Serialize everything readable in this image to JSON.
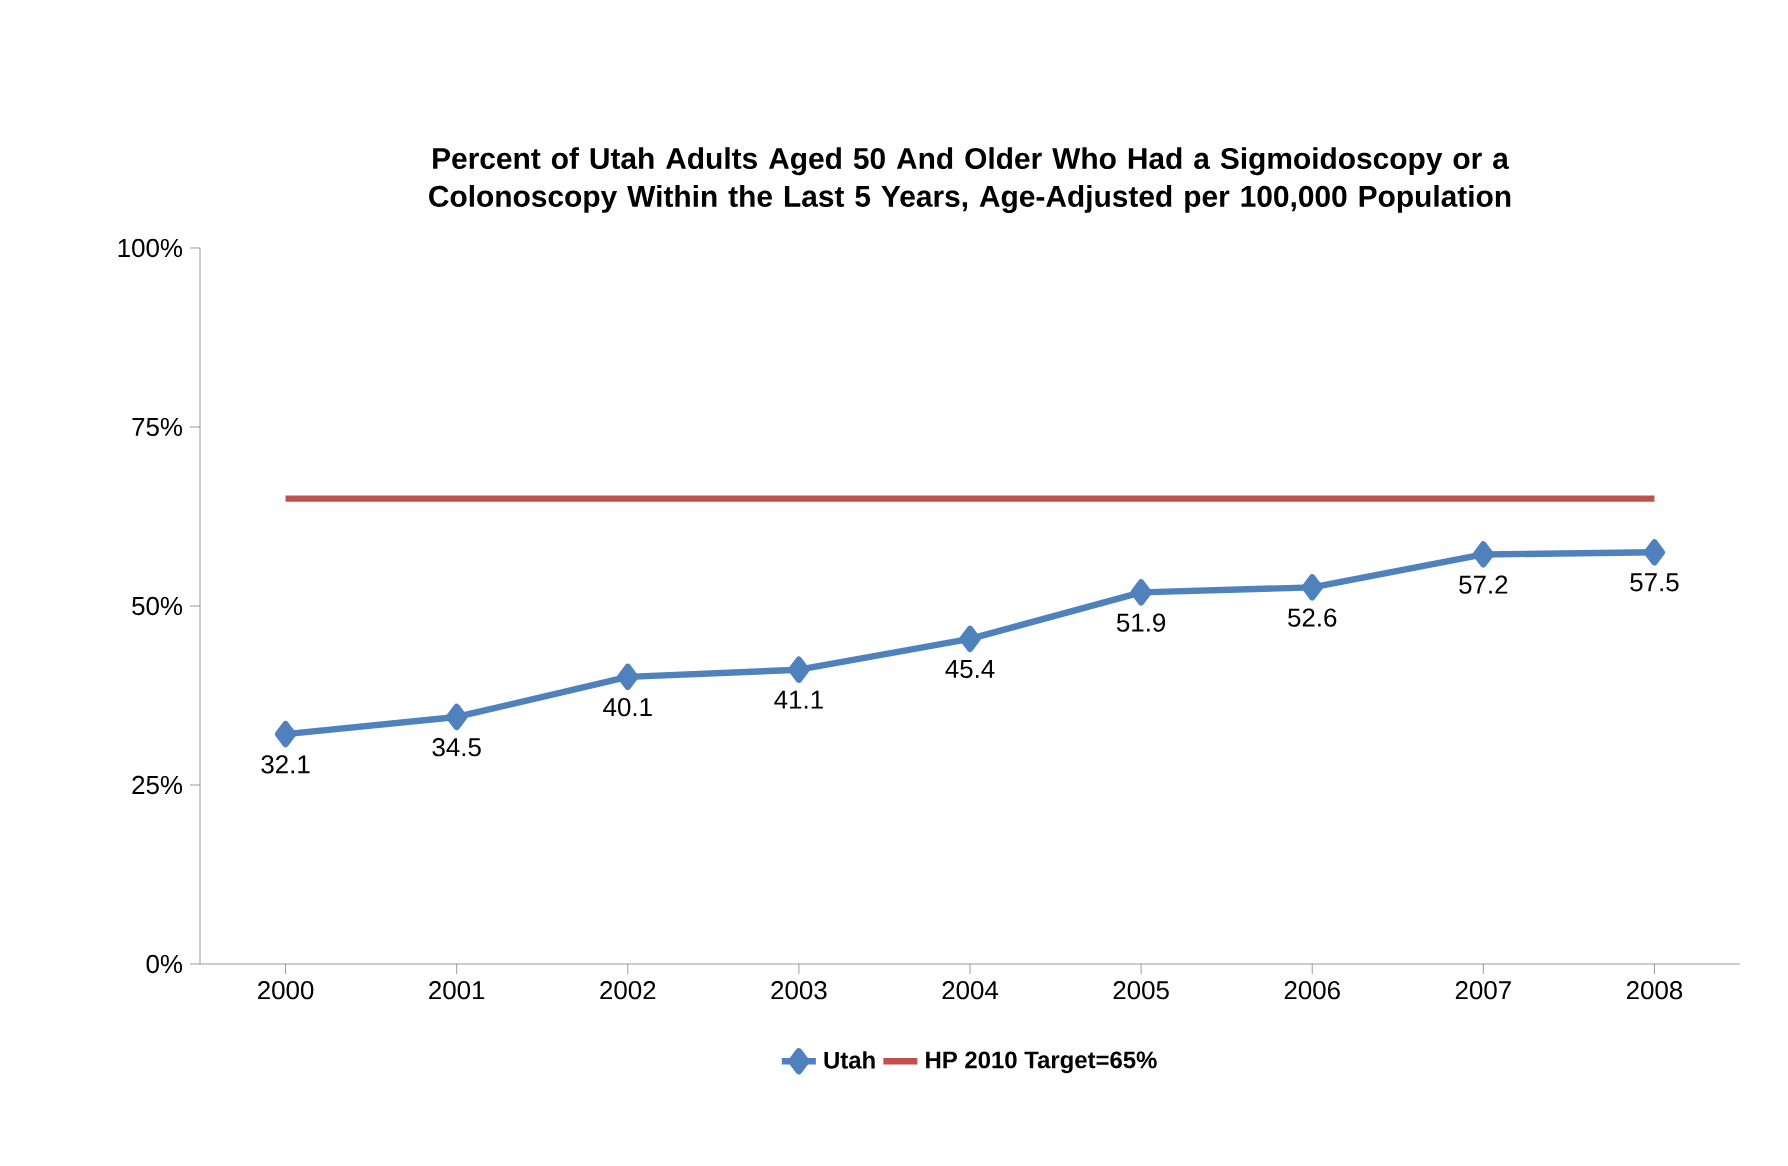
{
  "chart_data": {
    "type": "line",
    "title": "Percent of Utah Adults Aged 50 And Older Who Had a Sigmoidoscopy or a Colonoscopy Within the Last 5 Years, Age-Adjusted per 100,000 Population",
    "categories": [
      "2000",
      "2001",
      "2002",
      "2003",
      "2004",
      "2005",
      "2006",
      "2007",
      "2008"
    ],
    "series": [
      {
        "name": "Utah",
        "color": "#4f81bd",
        "marker": "diamond",
        "values": [
          32.1,
          34.5,
          40.1,
          41.1,
          45.4,
          51.9,
          52.6,
          57.2,
          57.5
        ],
        "value_labels": [
          "32.1",
          "34.5",
          "40.1",
          "41.1",
          "45.4",
          "51.9",
          "52.6",
          "57.2",
          "57.5"
        ]
      },
      {
        "name": "HP 2010 Target=65%",
        "color": "#c0504d",
        "marker": "none",
        "values": [
          65,
          65,
          65,
          65,
          65,
          65,
          65,
          65,
          65
        ]
      }
    ],
    "ylim": [
      0,
      100
    ],
    "yticks": [
      {
        "value": 0,
        "label": "0%"
      },
      {
        "value": 25,
        "label": "25%"
      },
      {
        "value": 50,
        "label": "50%"
      },
      {
        "value": 75,
        "label": "75%"
      },
      {
        "value": 100,
        "label": "100%"
      }
    ],
    "grid": false,
    "legend": "bottom"
  }
}
